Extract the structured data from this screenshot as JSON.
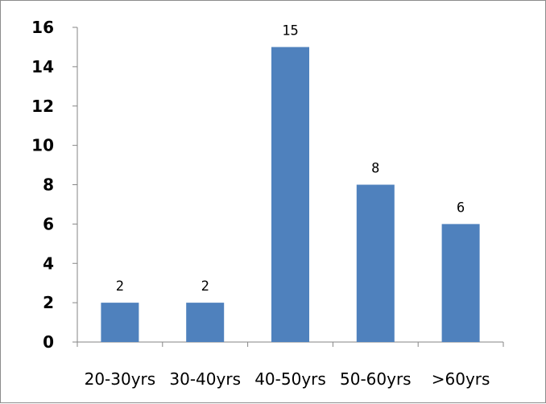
{
  "chart_data": {
    "type": "bar",
    "categories": [
      "20-30yrs",
      "30-40yrs",
      "40-50yrs",
      "50-60yrs",
      ">60yrs"
    ],
    "values": [
      2,
      2,
      15,
      8,
      6
    ],
    "yticks": [
      0,
      2,
      4,
      6,
      8,
      10,
      12,
      14,
      16
    ],
    "ylim": [
      0,
      16
    ],
    "title": "",
    "xlabel": "",
    "ylabel": "",
    "grid": false,
    "legend": "none",
    "bar_color": "#4f81bd"
  }
}
